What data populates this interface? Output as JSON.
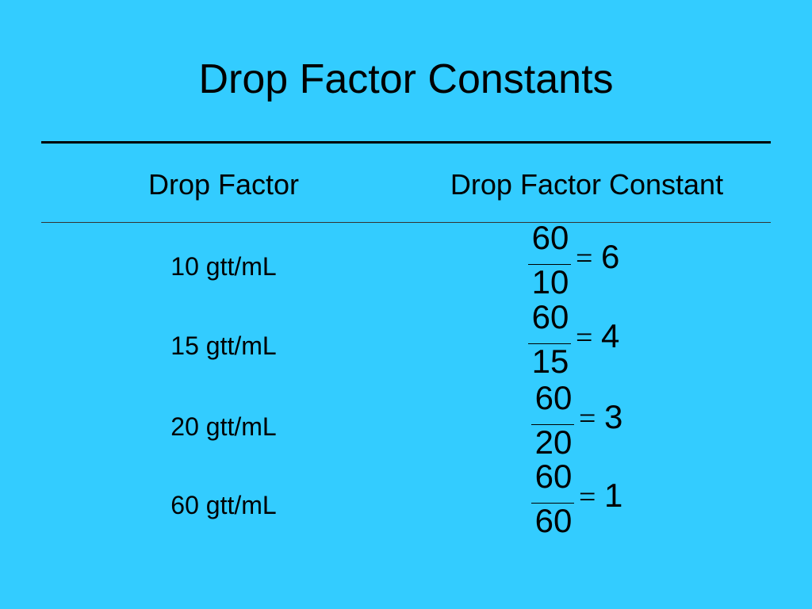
{
  "title": "Drop Factor Constants",
  "table": {
    "headers": [
      "Drop Factor",
      "Drop Factor Constant"
    ],
    "rows": [
      {
        "drop_factor": "10 gtt/mL",
        "numerator": "60",
        "denominator": "10",
        "equals": "=",
        "result": "6"
      },
      {
        "drop_factor": "15 gtt/mL",
        "numerator": "60",
        "denominator": "15",
        "equals": "=",
        "result": "4"
      },
      {
        "drop_factor": "20 gtt/mL",
        "numerator": "60",
        "denominator": "20",
        "equals": "=",
        "result": "3"
      },
      {
        "drop_factor": "60 gtt/mL",
        "numerator": "60",
        "denominator": "60",
        "equals": "=",
        "result": "1"
      }
    ]
  }
}
